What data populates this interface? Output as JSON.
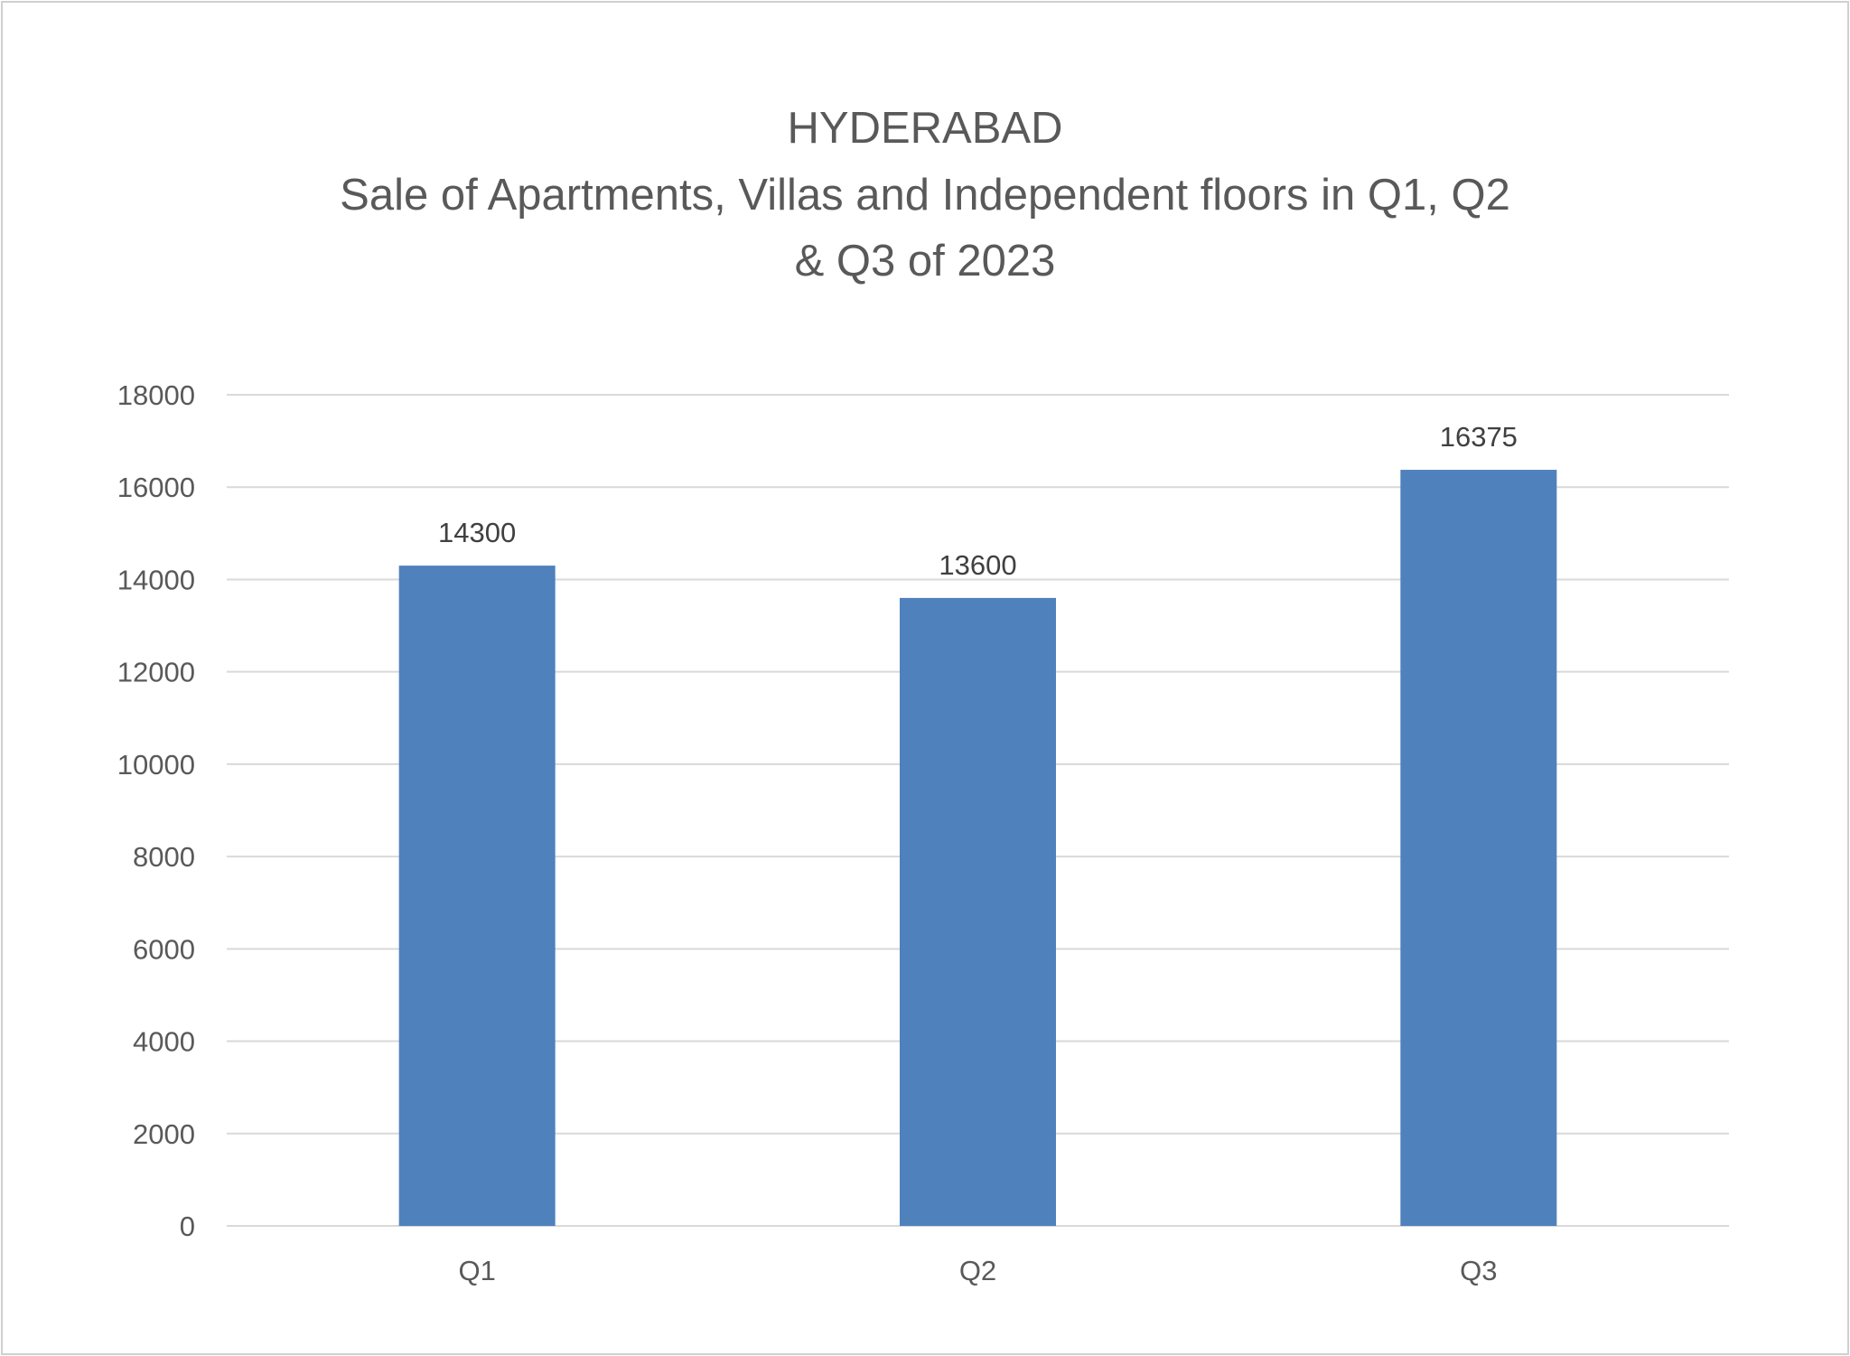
{
  "chart_data": {
    "type": "bar",
    "title": [
      "HYDERABAD",
      "Sale of Apartments, Villas and Independent floors in Q1, Q2",
      "& Q3 of 2023"
    ],
    "xlabel": "",
    "ylabel": "",
    "categories": [
      "Q1",
      "Q2",
      "Q3"
    ],
    "values": [
      14300,
      13600,
      16375
    ],
    "data_labels": [
      "14300",
      "13600",
      "16375"
    ],
    "ylim": [
      0,
      18000
    ],
    "yticks": [
      0,
      2000,
      4000,
      6000,
      8000,
      10000,
      12000,
      14000,
      16000,
      18000
    ],
    "grid": true,
    "legend": "none",
    "bar_color": "#4f81bd",
    "grid_color": "#d9d9d9"
  }
}
